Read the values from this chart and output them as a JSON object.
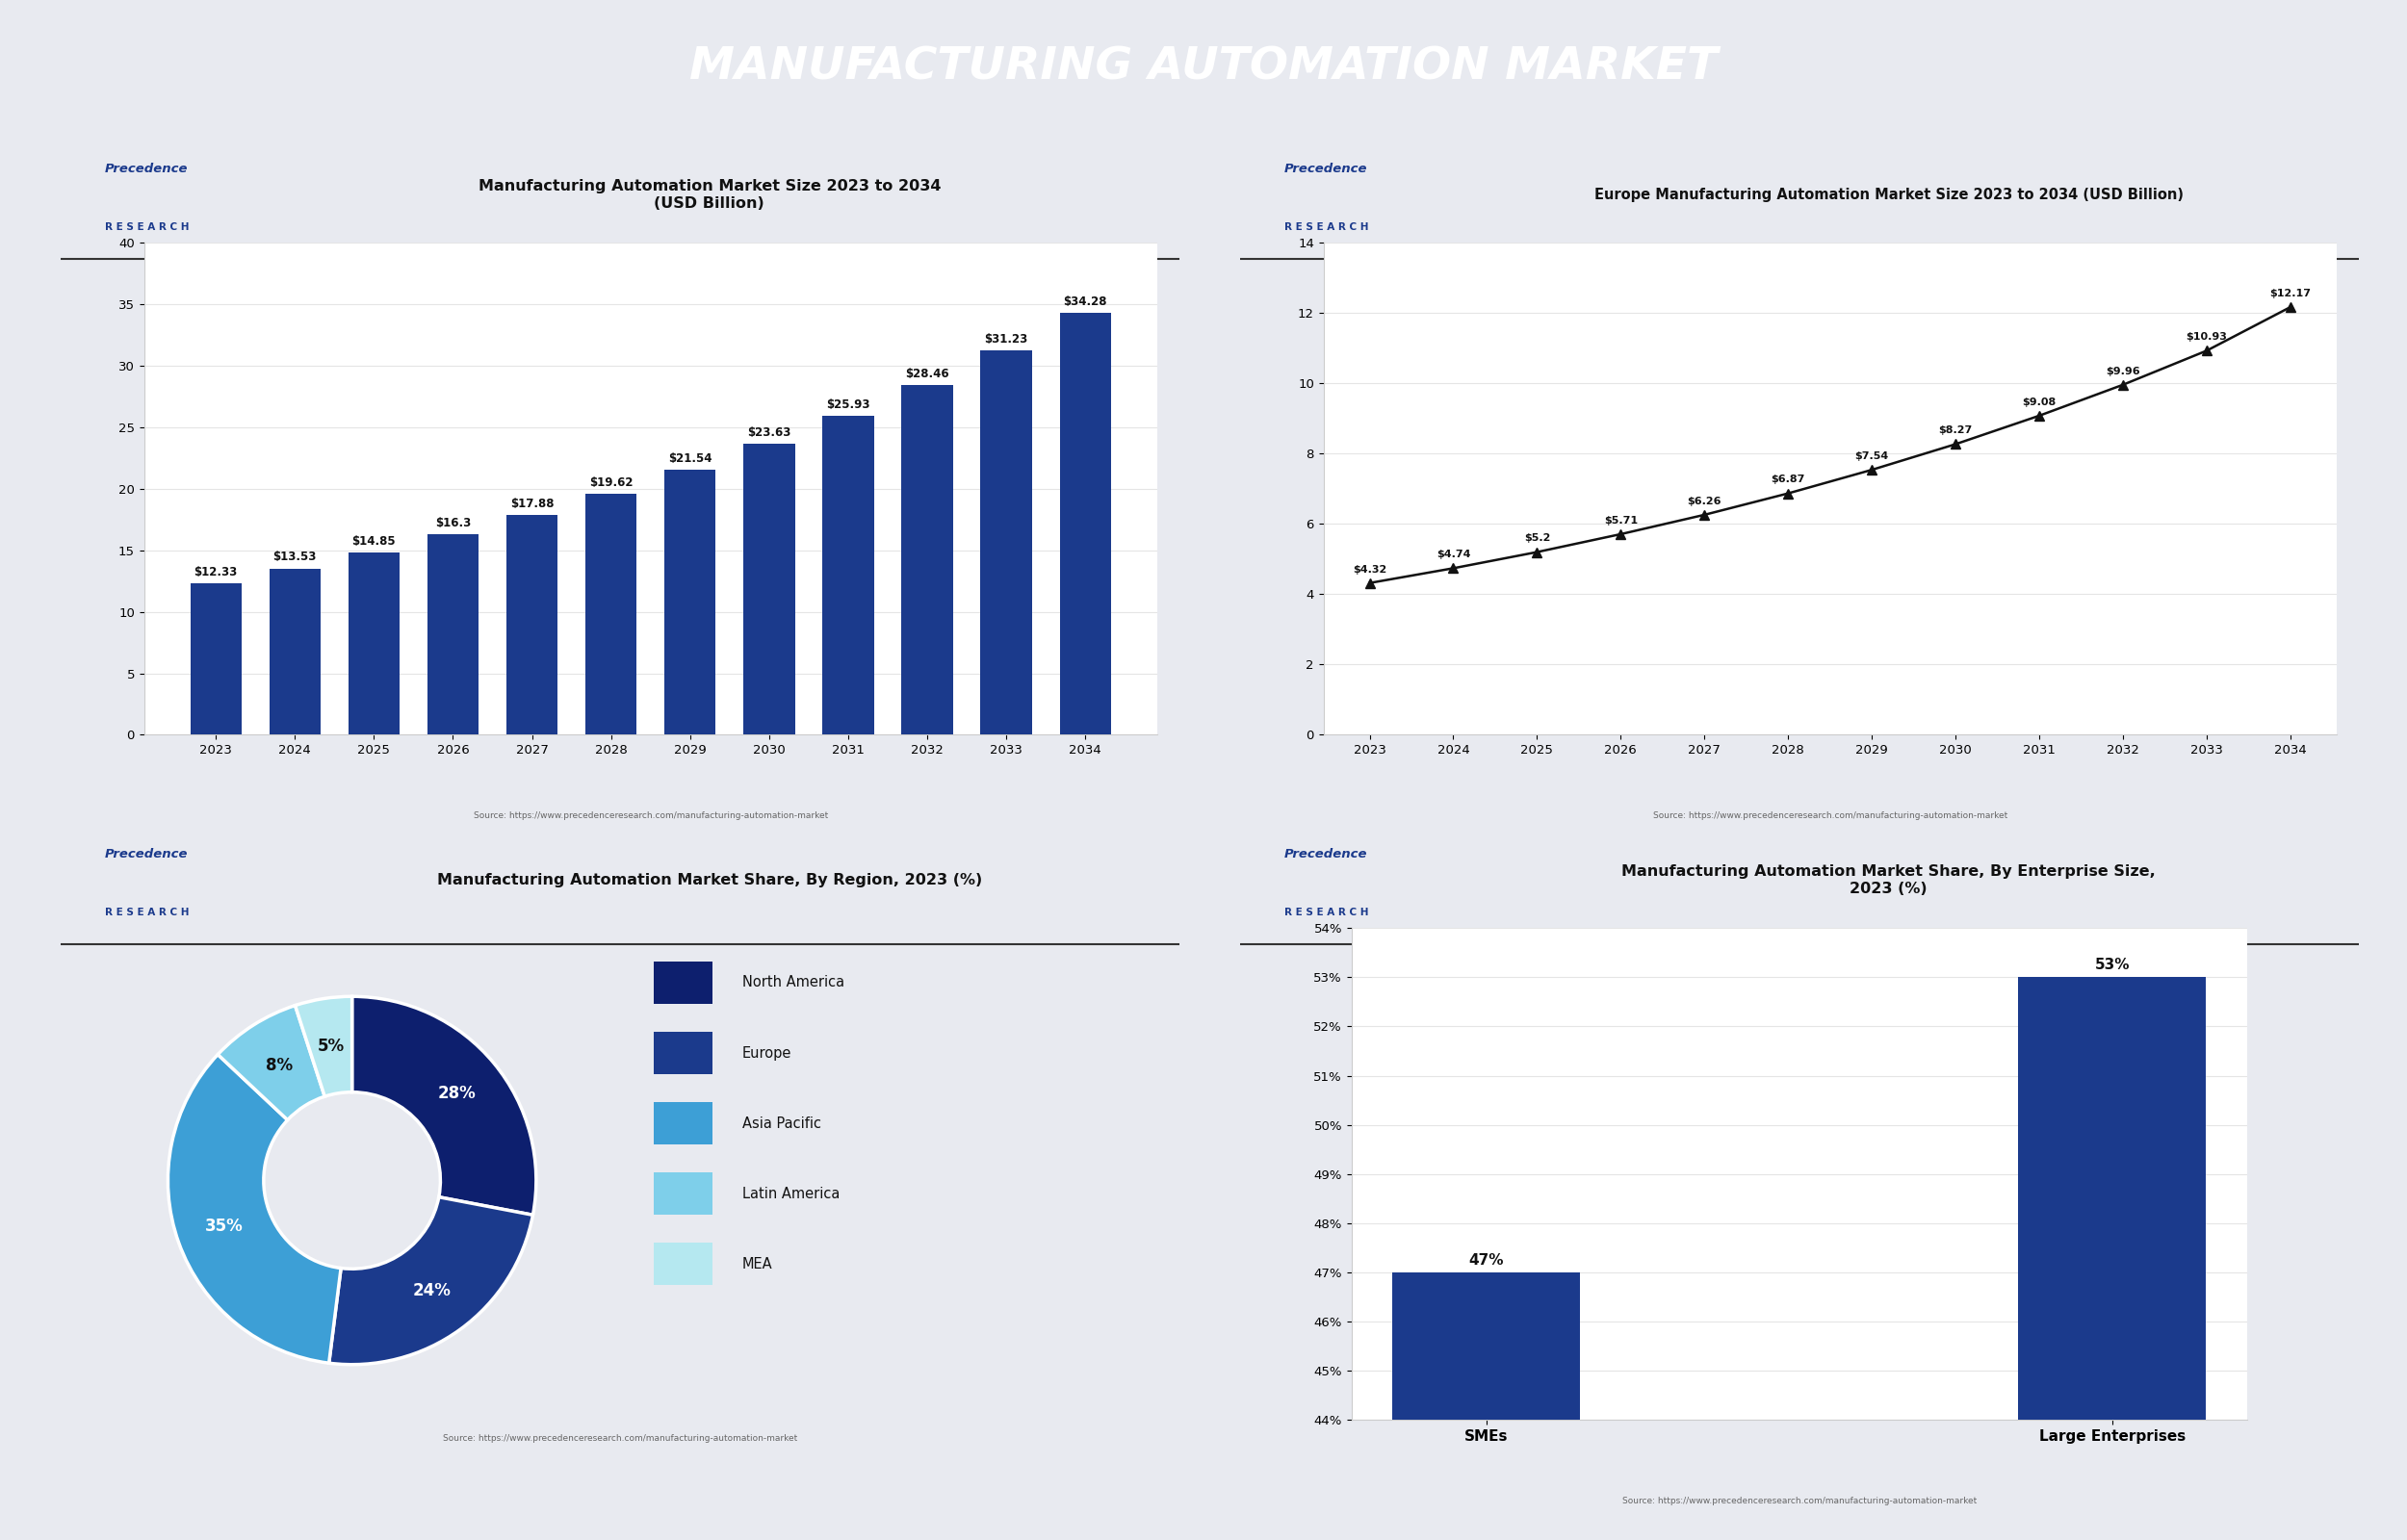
{
  "title": "MANUFACTURING AUTOMATION MARKET",
  "title_bg_color": "#0d1f6e",
  "title_text_color": "#ffffff",
  "background_color": "#e8eaf0",
  "chart1": {
    "title": "Manufacturing Automation Market Size 2023 to 2034\n(USD Billion)",
    "years": [
      2023,
      2024,
      2025,
      2026,
      2027,
      2028,
      2029,
      2030,
      2031,
      2032,
      2033,
      2034
    ],
    "values": [
      12.33,
      13.53,
      14.85,
      16.3,
      17.88,
      19.62,
      21.54,
      23.63,
      25.93,
      28.46,
      31.23,
      34.28
    ],
    "bar_color": "#1b3a8c",
    "ylim": [
      0,
      40
    ],
    "yticks": [
      0,
      5,
      10,
      15,
      20,
      25,
      30,
      35,
      40
    ],
    "source": "Source: https://www.precedenceresearch.com/manufacturing-automation-market"
  },
  "chart2": {
    "title": "Europe Manufacturing Automation Market Size 2023 to 2034 (USD Billion)",
    "years": [
      2023,
      2024,
      2025,
      2026,
      2027,
      2028,
      2029,
      2030,
      2031,
      2032,
      2033,
      2034
    ],
    "values": [
      4.32,
      4.74,
      5.2,
      5.71,
      6.26,
      6.87,
      7.54,
      8.27,
      9.08,
      9.96,
      10.93,
      12.17
    ],
    "line_color": "#111111",
    "ylim": [
      0,
      14
    ],
    "yticks": [
      0,
      2,
      4,
      6,
      8,
      10,
      12,
      14
    ],
    "source": "Source: https://www.precedenceresearch.com/manufacturing-automation-market"
  },
  "chart3": {
    "title": "Manufacturing Automation Market Share, By Region, 2023 (%)",
    "labels": [
      "North America",
      "Europe",
      "Asia Pacific",
      "Latin America",
      "MEA"
    ],
    "values": [
      28,
      24,
      35,
      8,
      5
    ],
    "colors": [
      "#0d1f6e",
      "#1b3a8c",
      "#3d9fd6",
      "#7ecfea",
      "#b5e8f0"
    ],
    "pct_labels": [
      "28%",
      "24%",
      "35%",
      "8%",
      "5%"
    ],
    "source": "Source: https://www.precedenceresearch.com/manufacturing-automation-market"
  },
  "chart4": {
    "title": "Manufacturing Automation Market Share, By Enterprise Size,\n2023 (%)",
    "categories": [
      "SMEs",
      "Large Enterprises"
    ],
    "values": [
      47,
      53
    ],
    "bar_colors": [
      "#1b3a8c",
      "#1b3a8c"
    ],
    "ylim": [
      44,
      54
    ],
    "yticks": [
      44,
      45,
      46,
      47,
      48,
      49,
      50,
      51,
      52,
      53,
      54
    ],
    "source": "Source: https://www.precedenceresearch.com/manufacturing-automation-market"
  },
  "logo_color_p": "#1b3a8c",
  "logo_color_r": "#1b3a8c"
}
